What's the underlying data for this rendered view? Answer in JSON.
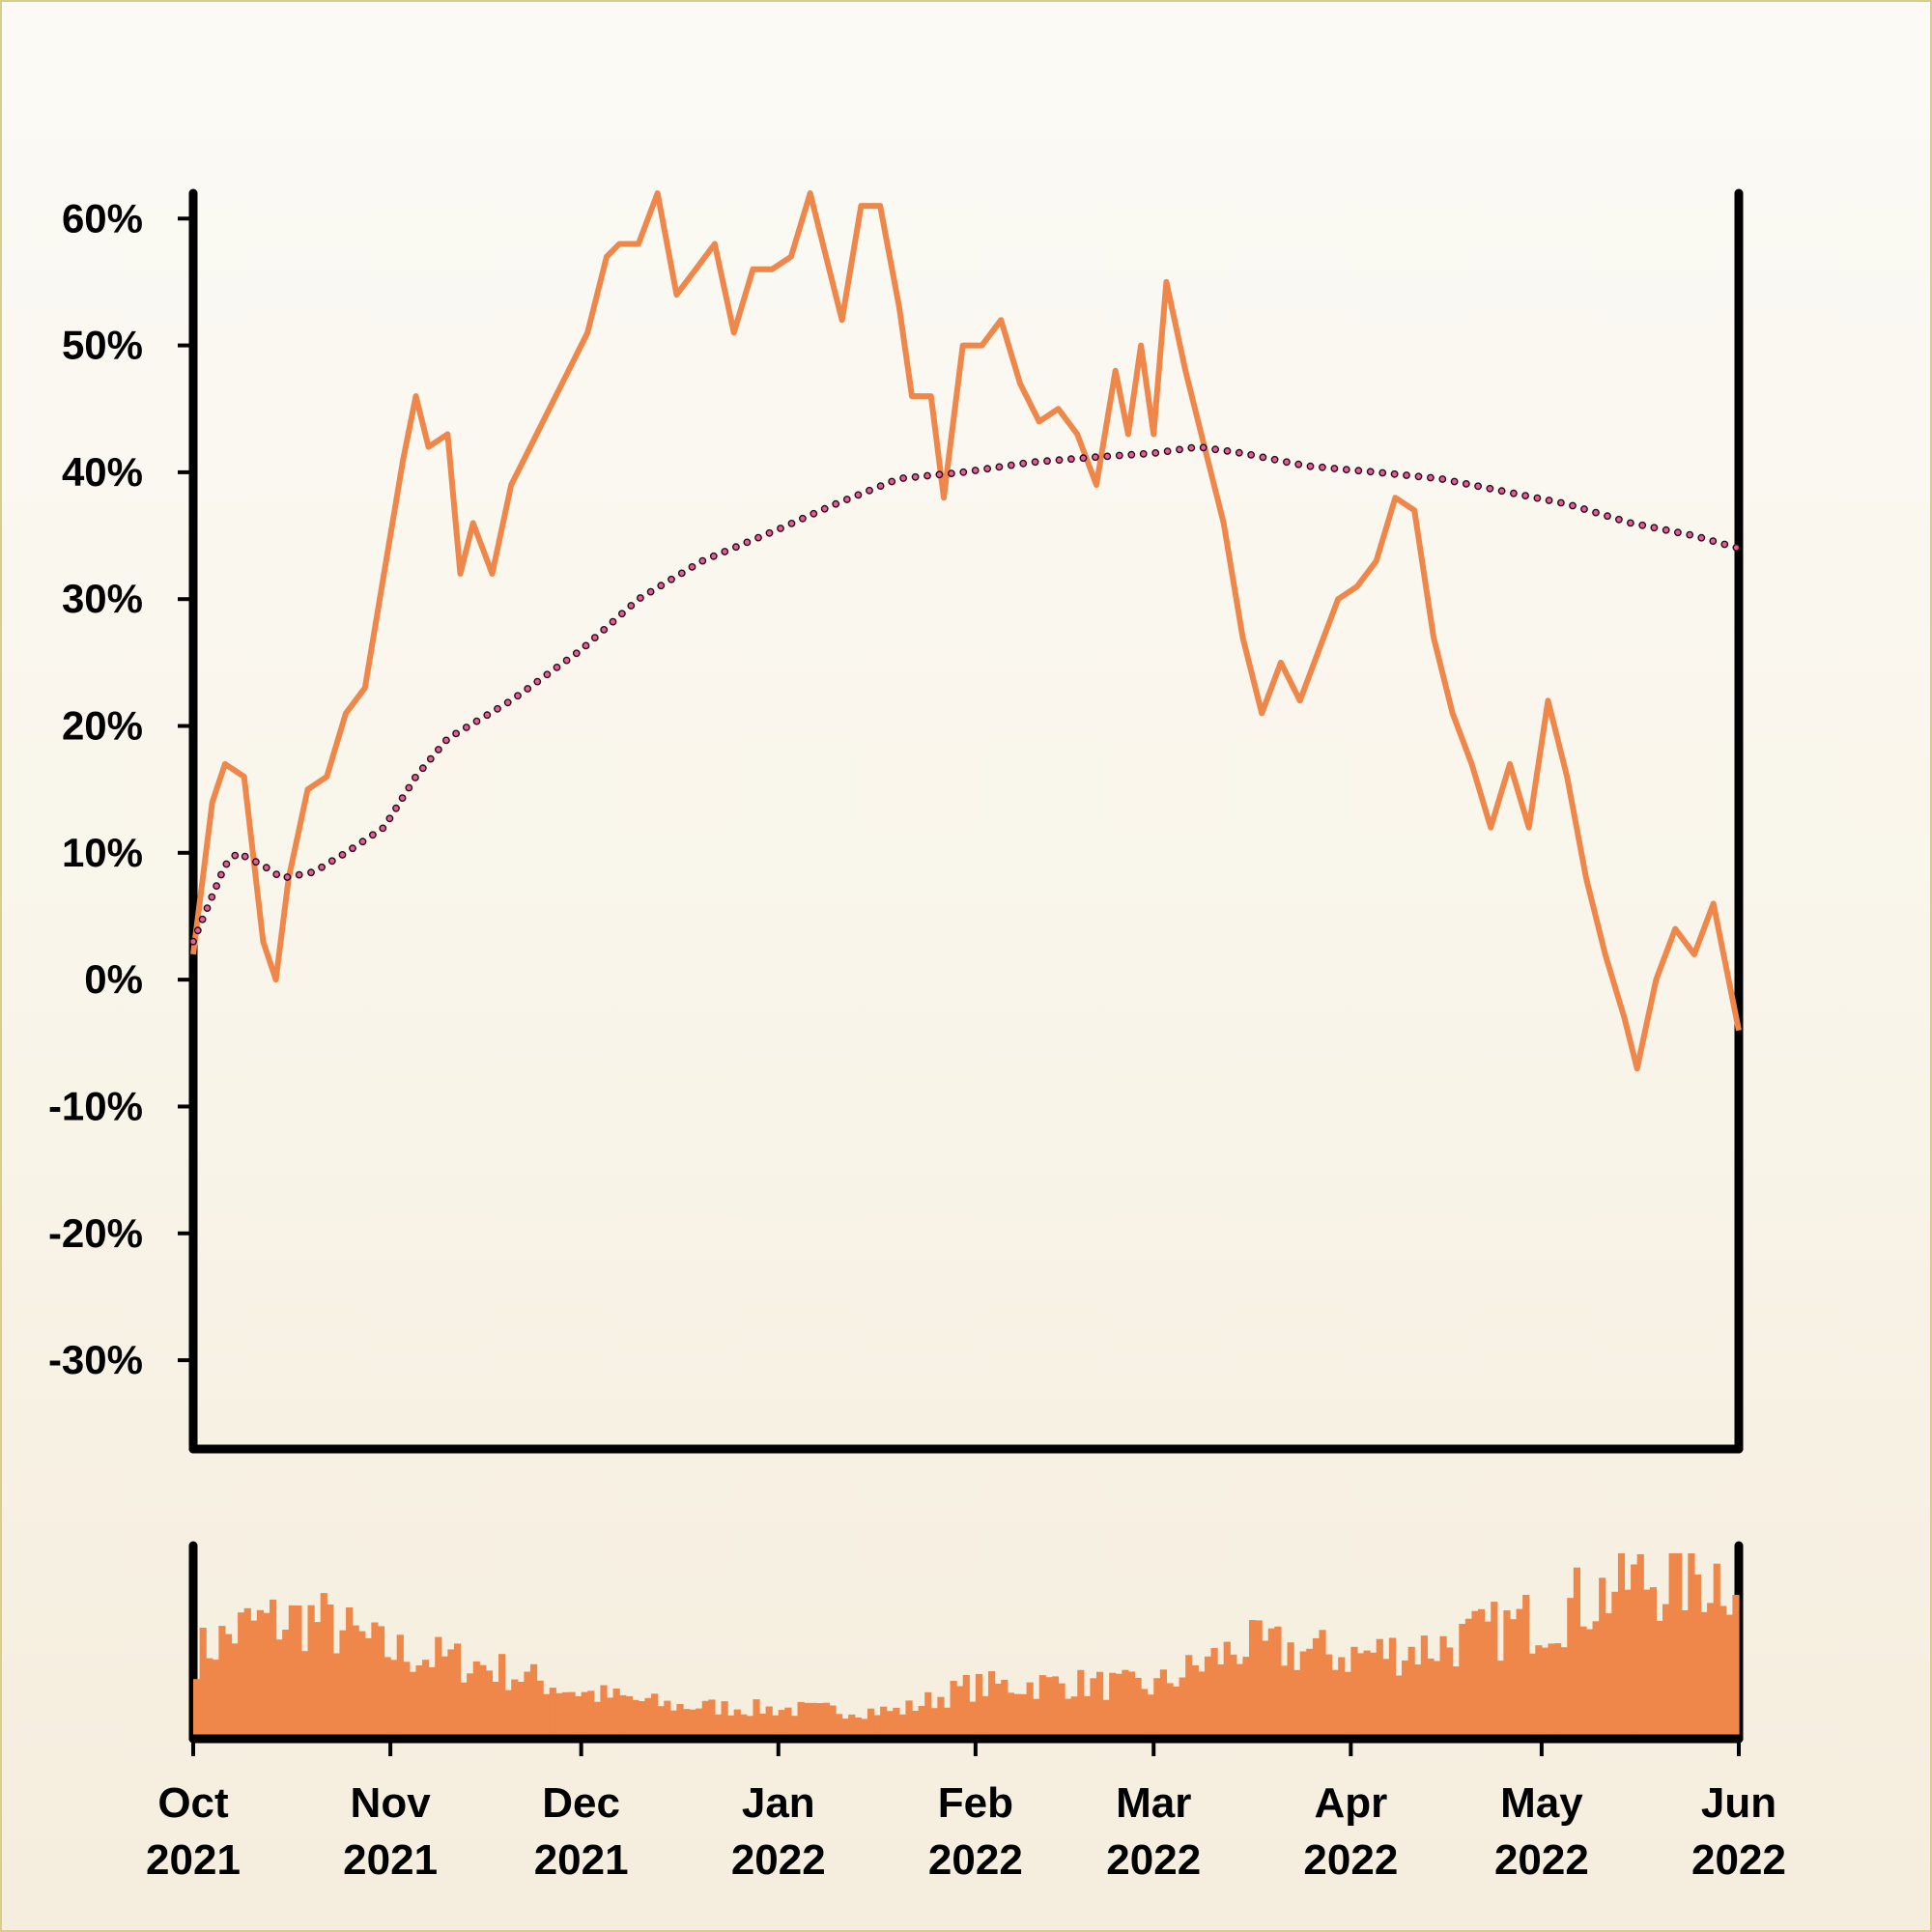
{
  "chart_data": [
    {
      "type": "line",
      "title": "",
      "xlabel": "",
      "ylabel": "",
      "x_range": [
        "2021-10-01",
        "2022-06-01"
      ],
      "ylim": [
        -37,
        62
      ],
      "yticks": [
        60,
        50,
        40,
        30,
        20,
        10,
        0,
        -10,
        -20,
        -30
      ],
      "ytick_labels": [
        "60%",
        "50%",
        "40%",
        "30%",
        "20%",
        "10%",
        "0%",
        "-10%",
        "-20%",
        "-30%"
      ],
      "grid": false,
      "legend": "none",
      "series": [
        {
          "style": "solid",
          "color": "#ee8749",
          "points": [
            [
              "2021-10-01",
              2
            ],
            [
              "2021-10-04",
              14
            ],
            [
              "2021-10-06",
              17
            ],
            [
              "2021-10-09",
              16
            ],
            [
              "2021-10-12",
              3
            ],
            [
              "2021-10-14",
              0
            ],
            [
              "2021-10-16",
              8
            ],
            [
              "2021-10-19",
              15
            ],
            [
              "2021-10-22",
              16
            ],
            [
              "2021-10-25",
              21
            ],
            [
              "2021-10-28",
              23
            ],
            [
              "2021-10-31",
              32
            ],
            [
              "2021-11-03",
              41
            ],
            [
              "2021-11-05",
              46
            ],
            [
              "2021-11-07",
              42
            ],
            [
              "2021-11-10",
              43
            ],
            [
              "2021-11-12",
              32
            ],
            [
              "2021-11-14",
              36
            ],
            [
              "2021-11-17",
              32
            ],
            [
              "2021-11-20",
              39
            ],
            [
              "2021-11-23",
              42
            ],
            [
              "2021-11-26",
              45
            ],
            [
              "2021-11-29",
              48
            ],
            [
              "2021-12-02",
              51
            ],
            [
              "2021-12-05",
              57
            ],
            [
              "2021-12-07",
              58
            ],
            [
              "2021-12-10",
              58
            ],
            [
              "2021-12-13",
              62
            ],
            [
              "2021-12-16",
              54
            ],
            [
              "2021-12-19",
              56
            ],
            [
              "2021-12-22",
              58
            ],
            [
              "2021-12-25",
              51
            ],
            [
              "2021-12-28",
              56
            ],
            [
              "2021-12-31",
              56
            ],
            [
              "2022-01-03",
              57
            ],
            [
              "2022-01-06",
              62
            ],
            [
              "2022-01-09",
              56
            ],
            [
              "2022-01-11",
              52
            ],
            [
              "2022-01-14",
              61
            ],
            [
              "2022-01-17",
              61
            ],
            [
              "2022-01-20",
              53
            ],
            [
              "2022-01-22",
              46
            ],
            [
              "2022-01-25",
              46
            ],
            [
              "2022-01-27",
              38
            ],
            [
              "2022-01-30",
              50
            ],
            [
              "2022-02-02",
              50
            ],
            [
              "2022-02-05",
              52
            ],
            [
              "2022-02-08",
              47
            ],
            [
              "2022-02-11",
              44
            ],
            [
              "2022-02-14",
              45
            ],
            [
              "2022-02-17",
              43
            ],
            [
              "2022-02-20",
              39
            ],
            [
              "2022-02-23",
              48
            ],
            [
              "2022-02-25",
              43
            ],
            [
              "2022-02-27",
              50
            ],
            [
              "2022-03-01",
              43
            ],
            [
              "2022-03-03",
              55
            ],
            [
              "2022-03-06",
              48
            ],
            [
              "2022-03-09",
              42
            ],
            [
              "2022-03-12",
              36
            ],
            [
              "2022-03-15",
              27
            ],
            [
              "2022-03-18",
              21
            ],
            [
              "2022-03-21",
              25
            ],
            [
              "2022-03-24",
              22
            ],
            [
              "2022-03-27",
              26
            ],
            [
              "2022-03-30",
              30
            ],
            [
              "2022-04-02",
              31
            ],
            [
              "2022-04-05",
              33
            ],
            [
              "2022-04-08",
              38
            ],
            [
              "2022-04-11",
              37
            ],
            [
              "2022-04-14",
              27
            ],
            [
              "2022-04-17",
              21
            ],
            [
              "2022-04-20",
              17
            ],
            [
              "2022-04-23",
              12
            ],
            [
              "2022-04-26",
              17
            ],
            [
              "2022-04-29",
              12
            ],
            [
              "2022-05-02",
              22
            ],
            [
              "2022-05-05",
              16
            ],
            [
              "2022-05-08",
              8
            ],
            [
              "2022-05-11",
              2
            ],
            [
              "2022-05-14",
              -3
            ],
            [
              "2022-05-16",
              -7
            ],
            [
              "2022-05-19",
              0
            ],
            [
              "2022-05-22",
              4
            ],
            [
              "2022-05-25",
              2
            ],
            [
              "2022-05-28",
              6
            ],
            [
              "2022-06-01",
              -4
            ]
          ]
        },
        {
          "style": "dotted",
          "color": "#e55d97",
          "points": [
            [
              "2021-10-01",
              3
            ],
            [
              "2021-10-06",
              9
            ],
            [
              "2021-10-08",
              10
            ],
            [
              "2021-10-12",
              9
            ],
            [
              "2021-10-15",
              8
            ],
            [
              "2021-10-20",
              8.5
            ],
            [
              "2021-10-25",
              10
            ],
            [
              "2021-10-31",
              12
            ],
            [
              "2021-11-05",
              16
            ],
            [
              "2021-11-10",
              19
            ],
            [
              "2021-11-20",
              22
            ],
            [
              "2021-12-01",
              26
            ],
            [
              "2021-12-10",
              30
            ],
            [
              "2021-12-20",
              33
            ],
            [
              "2022-01-01",
              35.5
            ],
            [
              "2022-01-10",
              37.5
            ],
            [
              "2022-01-20",
              39.5
            ],
            [
              "2022-01-30",
              40
            ],
            [
              "2022-02-10",
              40.8
            ],
            [
              "2022-02-20",
              41.2
            ],
            [
              "2022-03-01",
              41.5
            ],
            [
              "2022-03-08",
              42
            ],
            [
              "2022-03-15",
              41.5
            ],
            [
              "2022-03-25",
              40.5
            ],
            [
              "2022-04-05",
              40
            ],
            [
              "2022-04-15",
              39.5
            ],
            [
              "2022-04-25",
              38.5
            ],
            [
              "2022-05-05",
              37.5
            ],
            [
              "2022-05-15",
              36
            ],
            [
              "2022-05-25",
              35
            ],
            [
              "2022-06-01",
              34
            ]
          ]
        }
      ]
    },
    {
      "type": "bar",
      "title": "",
      "xlabel": "",
      "ylabel": "",
      "x_range": [
        "2021-10-01",
        "2022-06-01"
      ],
      "color": "#ee8749",
      "grid": false,
      "legend": "none",
      "relative_level_profile": [
        [
          "2021-10-01",
          45
        ],
        [
          "2021-10-10",
          62
        ],
        [
          "2021-10-20",
          65
        ],
        [
          "2021-10-31",
          48
        ],
        [
          "2021-11-15",
          40
        ],
        [
          "2021-12-01",
          25
        ],
        [
          "2021-12-15",
          18
        ],
        [
          "2022-01-01",
          16
        ],
        [
          "2022-01-20",
          15
        ],
        [
          "2022-01-31",
          28
        ],
        [
          "2022-02-15",
          30
        ],
        [
          "2022-03-01",
          28
        ],
        [
          "2022-03-15",
          50
        ],
        [
          "2022-04-01",
          45
        ],
        [
          "2022-04-15",
          50
        ],
        [
          "2022-05-01",
          65
        ],
        [
          "2022-05-15",
          85
        ],
        [
          "2022-06-01",
          90
        ]
      ],
      "xtick_labels": [
        [
          "Oct",
          "2021"
        ],
        [
          "Nov",
          "2021"
        ],
        [
          "Dec",
          "2021"
        ],
        [
          "Jan",
          "2022"
        ],
        [
          "Feb",
          "2022"
        ],
        [
          "Mar",
          "2022"
        ],
        [
          "Apr",
          "2022"
        ],
        [
          "May",
          "2022"
        ],
        [
          "Jun",
          "2022"
        ]
      ],
      "xtick_dates": [
        "2021-10-01",
        "2021-11-01",
        "2021-12-01",
        "2022-01-01",
        "2022-02-01",
        "2022-03-01",
        "2022-04-01",
        "2022-05-01",
        "2022-06-01"
      ]
    }
  ]
}
